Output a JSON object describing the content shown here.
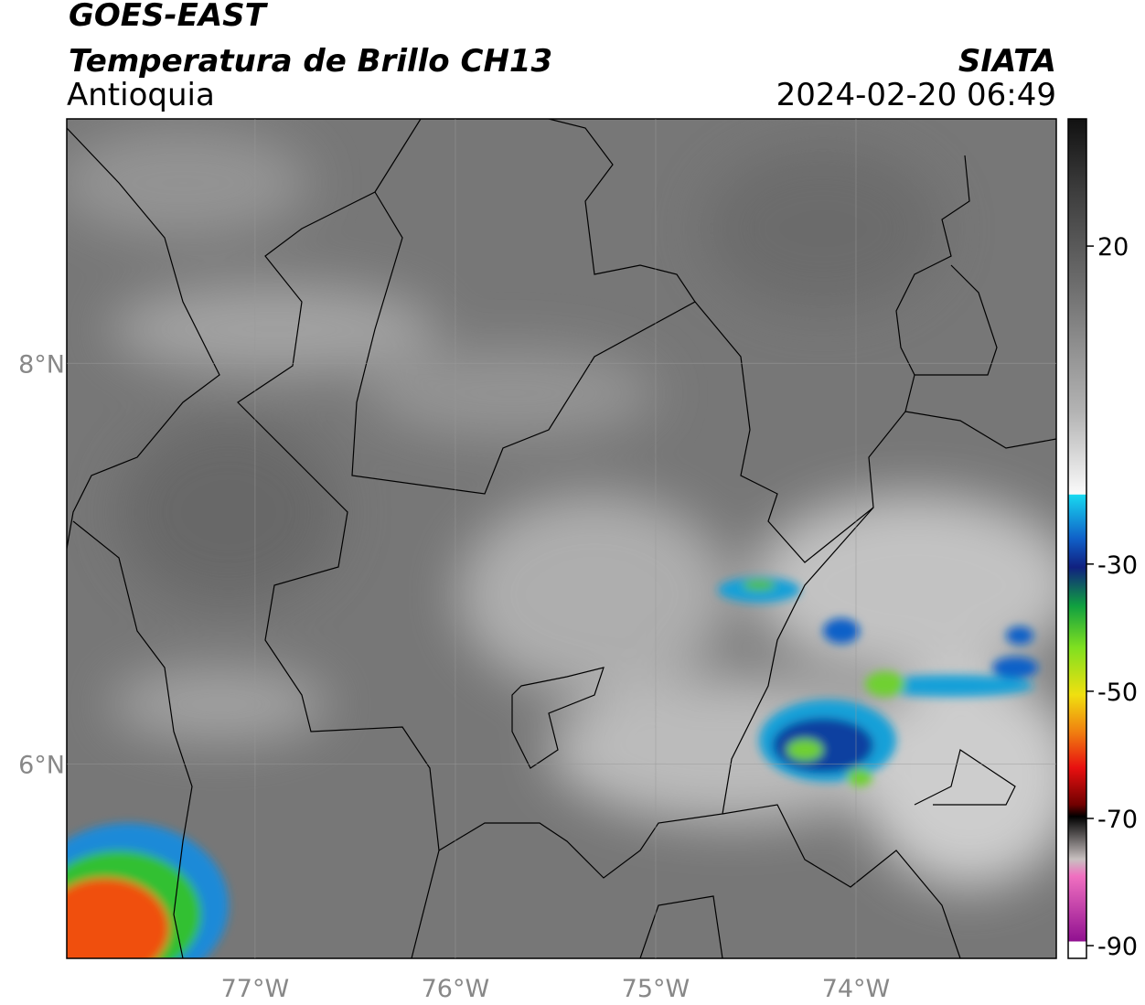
{
  "header": {
    "title": "GOES-EAST",
    "subtitle": "Temperatura de Brillo CH13",
    "region": "Antioquia",
    "source": "SIATA",
    "datetime": "2024-02-20 06:49"
  },
  "map": {
    "xlim": [
      -77.94,
      -73
    ],
    "ylim": [
      5.03,
      9.22
    ],
    "xticks": [
      {
        "value": -77,
        "label": "77°W"
      },
      {
        "value": -76,
        "label": "76°W"
      },
      {
        "value": -75,
        "label": "75°W"
      },
      {
        "value": -74,
        "label": "74°W"
      }
    ],
    "yticks": [
      {
        "value": 8,
        "label": "8°N"
      },
      {
        "value": 6,
        "label": "6°N"
      }
    ]
  },
  "colorbar": {
    "lim": [
      -92,
      40
    ],
    "ticks": [
      20,
      -30,
      -50,
      -70,
      -90
    ]
  }
}
